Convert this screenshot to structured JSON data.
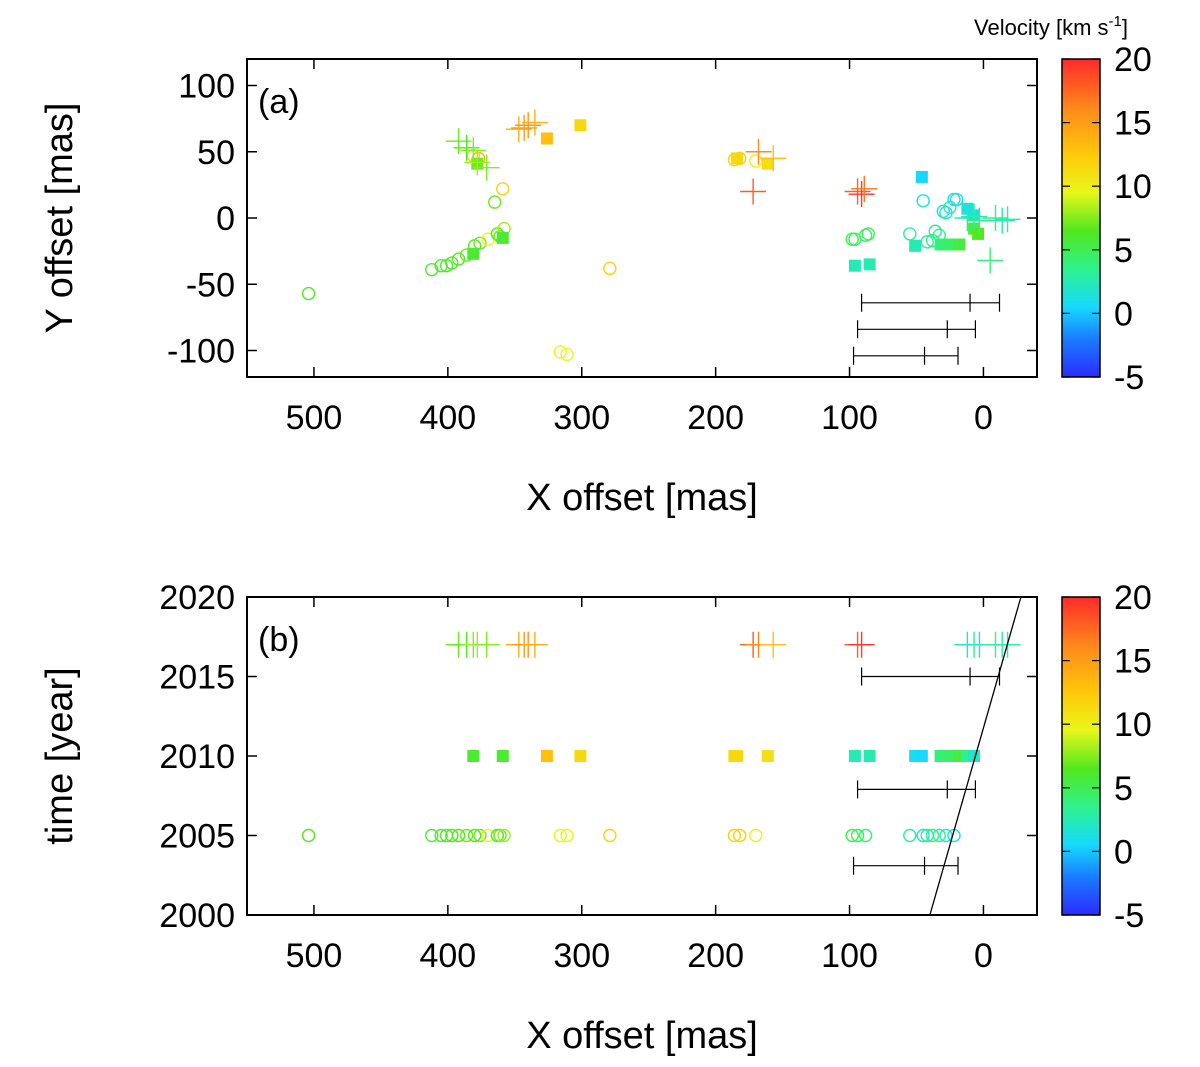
{
  "colorbar": {
    "title": "Velocity [km s",
    "title_sup": "-1",
    "title_end": "]",
    "range": [
      -5,
      20
    ],
    "ticks": [
      -5,
      0,
      5,
      10,
      15,
      20
    ],
    "tick_labels": [
      "-5",
      "0",
      "5",
      "10",
      "15",
      "20"
    ]
  },
  "chart_data": [
    {
      "type": "scatter",
      "panel_label": "(a)",
      "xlabel": "X offset [mas]",
      "ylabel": "Y offset [mas]",
      "xlim": [
        550,
        -40
      ],
      "ylim": [
        -120,
        120
      ],
      "xticks": [
        500,
        400,
        300,
        200,
        100,
        0
      ],
      "xtick_labels": [
        "500",
        "400",
        "300",
        "200",
        "100",
        "0"
      ],
      "yticks": [
        100,
        50,
        0,
        -50,
        -100
      ],
      "ytick_labels": [
        "100",
        "50",
        "0",
        "-50",
        "-100"
      ],
      "series": [
        {
          "marker": "circle",
          "points": [
            [
              504,
              -57,
              6.5
            ],
            [
              412,
              -39,
              6
            ],
            [
              405,
              -36,
              6
            ],
            [
              401,
              -36,
              6
            ],
            [
              397,
              -34,
              6.5
            ],
            [
              392,
              -31,
              6.5
            ],
            [
              386,
              -28,
              7
            ],
            [
              380,
              -21,
              6.5
            ],
            [
              376,
              -19,
              7
            ],
            [
              370,
              -16,
              9.5
            ],
            [
              363,
              -12,
              6.5
            ],
            [
              361,
              -14,
              7
            ],
            [
              358,
              -8,
              8
            ],
            [
              365,
              12,
              7
            ],
            [
              359,
              22,
              12
            ],
            [
              377,
              45,
              14
            ],
            [
              381,
              47,
              12
            ],
            [
              316,
              -101,
              9.5
            ],
            [
              311,
              -103,
              9.5
            ],
            [
              279,
              -38,
              12
            ],
            [
              186,
              44,
              12
            ],
            [
              182,
              45,
              12
            ],
            [
              170,
              43,
              10
            ],
            [
              98,
              -16,
              5.5
            ],
            [
              96,
              -16,
              4.5
            ],
            [
              88,
              -13,
              4
            ],
            [
              86,
              -12,
              5
            ],
            [
              55,
              -12,
              3
            ],
            [
              45,
              13,
              1.5
            ],
            [
              42,
              -18,
              3
            ],
            [
              38,
              -17,
              4
            ],
            [
              36,
              -10,
              3
            ],
            [
              33,
              -13,
              3.5
            ],
            [
              30,
              5,
              1
            ],
            [
              28,
              4,
              2
            ],
            [
              25,
              8,
              2.5
            ],
            [
              22,
              14,
              1
            ],
            [
              20,
              14,
              1.5
            ]
          ]
        },
        {
          "marker": "square",
          "points": [
            [
              381,
              -27,
              6
            ],
            [
              359,
              -15,
              6
            ],
            [
              326,
              60,
              13
            ],
            [
              301,
              70,
              11.5
            ],
            [
              184,
              45,
              11.5
            ],
            [
              161,
              41,
              11
            ],
            [
              96,
              -36,
              2.5
            ],
            [
              85,
              -35,
              2.5
            ],
            [
              46,
              31,
              0.5
            ],
            [
              51,
              -21,
              2.5
            ],
            [
              32,
              -20,
              4
            ],
            [
              26,
              -20,
              4.5
            ],
            [
              18,
              -20,
              5.5
            ],
            [
              12,
              7,
              1.5
            ],
            [
              7,
              2,
              1.5
            ],
            [
              7,
              -8,
              5.5
            ],
            [
              4,
              -12,
              6.5
            ],
            [
              378,
              41,
              7
            ]
          ]
        },
        {
          "marker": "plus",
          "points": [
            [
              392,
              58,
              7
            ],
            [
              386,
              53,
              6.5
            ],
            [
              381,
              51,
              7.5
            ],
            [
              378,
              42,
              8
            ],
            [
              371,
              38,
              7.5
            ],
            [
              347,
              67,
              14
            ],
            [
              343,
              68,
              15
            ],
            [
              340,
              70,
              15.5
            ],
            [
              335,
              72,
              14
            ],
            [
              172,
              20,
              18
            ],
            [
              168,
              50,
              16
            ],
            [
              157,
              45,
              13
            ],
            [
              94,
              20,
              18
            ],
            [
              91,
              18,
              19.5
            ],
            [
              89,
              22,
              17
            ],
            [
              12,
              0,
              2
            ],
            [
              7,
              1,
              3
            ],
            [
              3,
              -2,
              3
            ],
            [
              -9,
              0,
              3.5
            ],
            [
              -14,
              -2,
              2.5
            ],
            [
              -18,
              -1,
              3
            ],
            [
              -5,
              -32,
              4
            ]
          ]
        }
      ],
      "error_bars": [
        {
          "y": -64,
          "x_center": 10,
          "x_low": 91,
          "x_high": -12
        },
        {
          "y": -84,
          "x_center": 27,
          "x_low": 94,
          "x_high": 6
        },
        {
          "y": -104,
          "x_center": 44,
          "x_low": 97,
          "x_high": 19
        }
      ]
    },
    {
      "type": "scatter",
      "panel_label": "(b)",
      "xlabel": "X offset [mas]",
      "ylabel": "time [year]",
      "xlim": [
        550,
        -40
      ],
      "ylim": [
        2000,
        2020
      ],
      "xticks": [
        500,
        400,
        300,
        200,
        100,
        0
      ],
      "xtick_labels": [
        "500",
        "400",
        "300",
        "200",
        "100",
        "0"
      ],
      "yticks": [
        2020,
        2015,
        2010,
        2005,
        2000
      ],
      "ytick_labels": [
        "2020",
        "2015",
        "2010",
        "2005",
        "2000"
      ],
      "series": [
        {
          "marker": "circle",
          "points": [
            [
              504,
              2005,
              6.5
            ],
            [
              412,
              2005,
              6
            ],
            [
              405,
              2005,
              6
            ],
            [
              401,
              2005,
              6
            ],
            [
              397,
              2005,
              6.5
            ],
            [
              392,
              2005,
              6.5
            ],
            [
              386,
              2005,
              7
            ],
            [
              380,
              2005,
              6.5
            ],
            [
              376,
              2005,
              7
            ],
            [
              370,
              2005,
              9.5
            ],
            [
              363,
              2005,
              6.5
            ],
            [
              361,
              2005,
              7
            ],
            [
              358,
              2005,
              8
            ],
            [
              316,
              2005,
              9.5
            ],
            [
              311,
              2005,
              9.5
            ],
            [
              279,
              2005,
              12
            ],
            [
              186,
              2005,
              12
            ],
            [
              182,
              2005,
              12
            ],
            [
              170,
              2005,
              10
            ],
            [
              98,
              2005,
              5.5
            ],
            [
              94,
              2005,
              4.5
            ],
            [
              88,
              2005,
              4
            ],
            [
              55,
              2005,
              3
            ],
            [
              45,
              2005,
              1.5
            ],
            [
              42,
              2005,
              3
            ],
            [
              38,
              2005,
              4
            ],
            [
              33,
              2005,
              3.5
            ],
            [
              28,
              2005,
              2
            ],
            [
              22,
              2005,
              1
            ]
          ]
        },
        {
          "marker": "square",
          "points": [
            [
              381,
              2010,
              6
            ],
            [
              359,
              2010,
              6
            ],
            [
              326,
              2010,
              13
            ],
            [
              301,
              2010,
              11.5
            ],
            [
              186,
              2010,
              11.5
            ],
            [
              184,
              2010,
              11.5
            ],
            [
              161,
              2010,
              11
            ],
            [
              96,
              2010,
              2.5
            ],
            [
              85,
              2010,
              2.5
            ],
            [
              51,
              2010,
              1
            ],
            [
              46,
              2010,
              0.5
            ],
            [
              32,
              2010,
              4
            ],
            [
              26,
              2010,
              4.5
            ],
            [
              18,
              2010,
              5.5
            ],
            [
              12,
              2010,
              3.5
            ],
            [
              7,
              2010,
              2
            ]
          ]
        },
        {
          "marker": "plus",
          "points": [
            [
              392,
              2017,
              7
            ],
            [
              386,
              2017,
              6.5
            ],
            [
              381,
              2017,
              7.5
            ],
            [
              378,
              2017,
              8
            ],
            [
              371,
              2017,
              7.5
            ],
            [
              347,
              2017,
              14
            ],
            [
              343,
              2017,
              15
            ],
            [
              340,
              2017,
              15.5
            ],
            [
              335,
              2017,
              14
            ],
            [
              172,
              2017,
              18
            ],
            [
              168,
              2017,
              16
            ],
            [
              157,
              2017,
              13
            ],
            [
              94,
              2017,
              18
            ],
            [
              91,
              2017,
              19.5
            ],
            [
              12,
              2017,
              2
            ],
            [
              7,
              2017,
              3
            ],
            [
              3,
              2017,
              2
            ],
            [
              -9,
              2017,
              3.5
            ],
            [
              -14,
              2017,
              2.5
            ],
            [
              -18,
              2017,
              3
            ]
          ]
        }
      ],
      "error_bars": [
        {
          "y": 2015,
          "x_center": 10,
          "x_low": 91,
          "x_high": -12
        },
        {
          "y": 2007.9,
          "x_center": 27,
          "x_low": 94,
          "x_high": 6
        },
        {
          "y": 2003.1,
          "x_center": 44,
          "x_low": 97,
          "x_high": 19
        }
      ],
      "line": {
        "x1": 40,
        "y1": 2000,
        "x2": -28,
        "y2": 2020
      }
    }
  ]
}
